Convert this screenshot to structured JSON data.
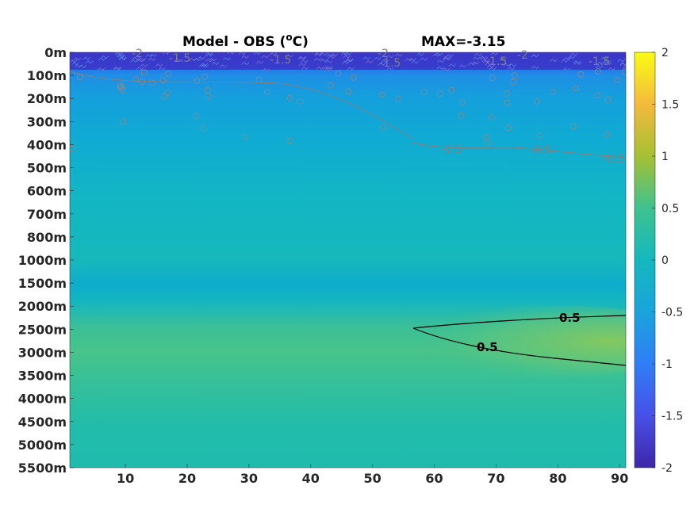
{
  "title": {
    "left_prefix": "Model - OBS (",
    "left_sup": "o",
    "left_suffix": "C)",
    "right": "MAX=-3.15"
  },
  "colors": {
    "colormap": "parula",
    "contour_labeled": "#000000",
    "contour_minor": "#808080"
  },
  "chart_data": {
    "type": "heatmap",
    "title": "Model - OBS (oC)   MAX=-3.15",
    "xlabel": "",
    "ylabel": "",
    "x_ticks": [
      10,
      20,
      30,
      40,
      50,
      60,
      70,
      80,
      90
    ],
    "xlim": [
      1,
      91
    ],
    "y_levels": [
      "0m",
      "100m",
      "200m",
      "300m",
      "400m",
      "500m",
      "600m",
      "700m",
      "800m",
      "1000m",
      "1500m",
      "2000m",
      "2500m",
      "3000m",
      "3500m",
      "4000m",
      "4500m",
      "5000m",
      "5500m"
    ],
    "colorbar": {
      "limits": [
        -2,
        2
      ],
      "ticks": [
        "2",
        "1.5",
        "1",
        "0.5",
        "0",
        "-0.5",
        "-1",
        "-1.5",
        "-2"
      ]
    },
    "approx_field_by_depth": [
      {
        "depth": "0m",
        "value": -1.6
      },
      {
        "depth": "100m",
        "value": -0.7
      },
      {
        "depth": "200m",
        "value": -0.45
      },
      {
        "depth": "300m",
        "value": -0.3
      },
      {
        "depth": "400m",
        "value": -0.25
      },
      {
        "depth": "500m",
        "value": -0.2
      },
      {
        "depth": "700m",
        "value": -0.1
      },
      {
        "depth": "1000m",
        "value": -0.05
      },
      {
        "depth": "1500m",
        "value": -0.25
      },
      {
        "depth": "2000m",
        "value": 0.15
      },
      {
        "depth": "2500m",
        "value": 0.35
      },
      {
        "depth": "3000m",
        "value": 0.25
      },
      {
        "depth": "3500m",
        "value": 0.15
      },
      {
        "depth": "4000m",
        "value": 0.1
      },
      {
        "depth": "4500m",
        "value": 0.05
      },
      {
        "depth": "5000m",
        "value": 0.0
      },
      {
        "depth": "5500m",
        "value": 0.05
      }
    ],
    "contours": [
      {
        "level": 0.5,
        "region": "x from about 56 to 91, depth about 2500m to 3000m",
        "labels": [
          "0.5",
          "0.5"
        ]
      },
      {
        "level": -0.5,
        "region": "x from about 57 to 91, depth about 400m to 500m",
        "labels": [
          "-0.5",
          "-0.5",
          "-0.5"
        ]
      },
      {
        "level": -1.5,
        "region": "near surface",
        "labels": [
          "-1.5",
          "-1.5",
          "-1.5",
          "-1.5",
          "-1.5"
        ]
      },
      {
        "level": -2,
        "region": "near surface",
        "labels": [
          "-2",
          "-2",
          "-2"
        ]
      }
    ],
    "contour_labels": {
      "black": [
        "0.5",
        "0.5"
      ],
      "gray": [
        "-2",
        "-1.5",
        "-1.5",
        "-2",
        "-1.5",
        "-1.5",
        "-2",
        "-1.5",
        "-0.5",
        "-0.5",
        "-0.5"
      ]
    }
  }
}
